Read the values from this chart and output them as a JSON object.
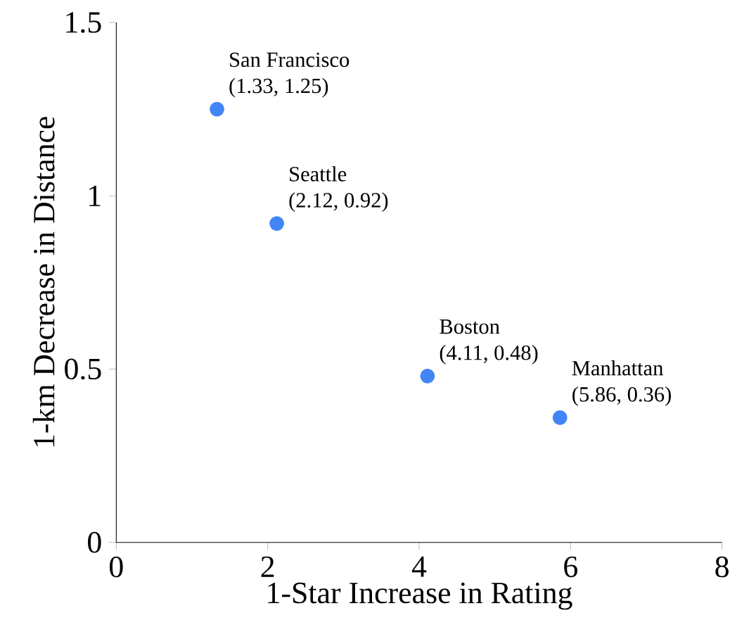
{
  "chart_data": {
    "type": "scatter",
    "xlabel": "1-Star Increase in Rating",
    "ylabel": "1-km Decrease in Distance",
    "xlim": [
      0,
      8
    ],
    "ylim": [
      0,
      1.5
    ],
    "xticks": [
      0,
      2,
      4,
      6,
      8
    ],
    "yticks": [
      0,
      0.5,
      1,
      1.5
    ],
    "series": [
      {
        "name": "San Francisco",
        "color": "#4285f4",
        "x": [
          1.33
        ],
        "values": [
          1.25
        ]
      },
      {
        "name": "Seattle",
        "color": "#4285f4",
        "x": [
          2.12
        ],
        "values": [
          0.92
        ]
      },
      {
        "name": "Boston",
        "color": "#4285f4",
        "x": [
          4.11
        ],
        "values": [
          0.48
        ]
      },
      {
        "name": "Manhattan",
        "color": "#4285f4",
        "x": [
          5.86
        ],
        "values": [
          0.36
        ]
      }
    ],
    "annotations": [
      {
        "text": "(1.33, 1.25)",
        "x": 1.33,
        "y": 1.25
      },
      {
        "text": "(2.12, 0.92)",
        "x": 2.12,
        "y": 0.92
      },
      {
        "text": "(4.11, 0.48)",
        "x": 4.11,
        "y": 0.48
      },
      {
        "text": "(5.86, 0.36)",
        "x": 5.86,
        "y": 0.36
      }
    ]
  }
}
